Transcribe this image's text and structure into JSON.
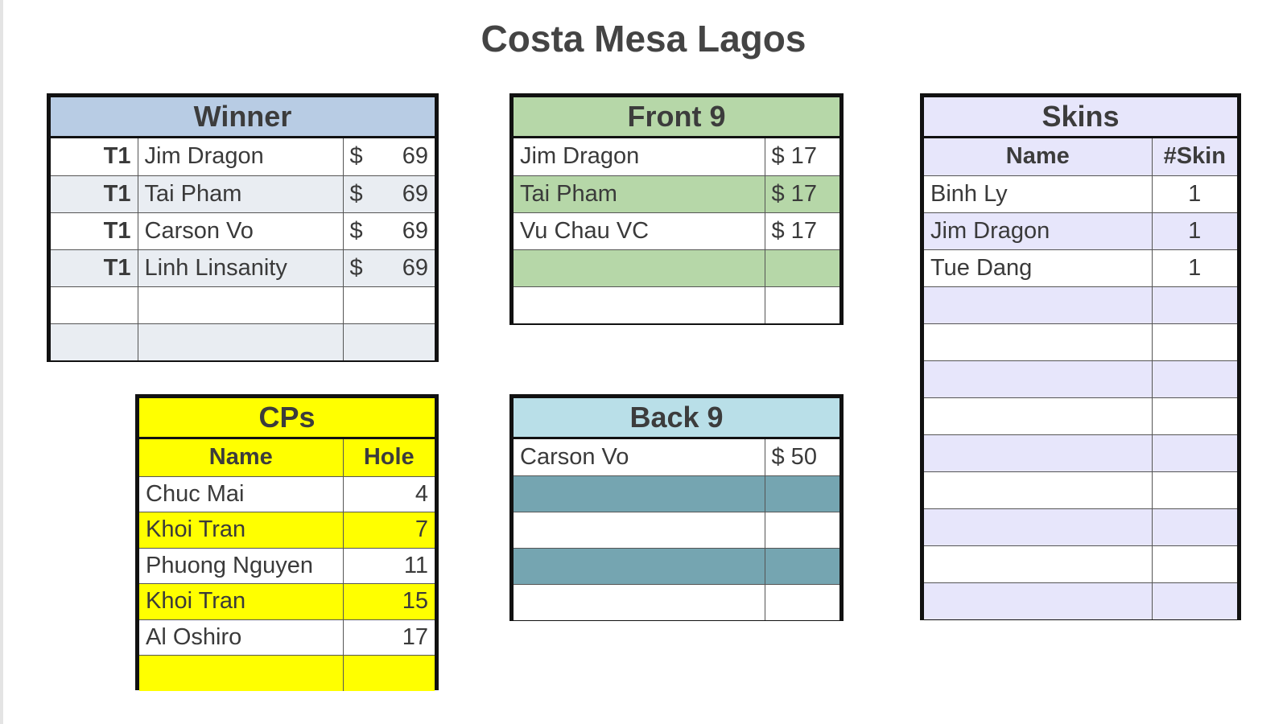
{
  "title": "Costa Mesa Lagos",
  "winner": {
    "header": "Winner",
    "rows": [
      {
        "place": "T1",
        "name": "Jim Dragon",
        "currency": "$",
        "amount": "69"
      },
      {
        "place": "T1",
        "name": "Tai Pham",
        "currency": "$",
        "amount": "69"
      },
      {
        "place": "T1",
        "name": "Carson Vo",
        "currency": "$",
        "amount": "69"
      },
      {
        "place": "T1",
        "name": "Linh Linsanity",
        "currency": "$",
        "amount": "69"
      },
      {
        "place": "",
        "name": "",
        "currency": "",
        "amount": ""
      },
      {
        "place": "",
        "name": "",
        "currency": "",
        "amount": ""
      }
    ]
  },
  "front9": {
    "header": "Front 9",
    "rows": [
      {
        "name": "Jim Dragon",
        "amount": "$ 17"
      },
      {
        "name": "Tai Pham",
        "amount": "$ 17"
      },
      {
        "name": "Vu Chau VC",
        "amount": "$ 17"
      },
      {
        "name": "",
        "amount": ""
      },
      {
        "name": "",
        "amount": ""
      }
    ]
  },
  "back9": {
    "header": "Back 9",
    "rows": [
      {
        "name": "Carson Vo",
        "amount": "$ 50"
      },
      {
        "name": "",
        "amount": ""
      },
      {
        "name": "",
        "amount": ""
      },
      {
        "name": "",
        "amount": ""
      },
      {
        "name": "",
        "amount": ""
      }
    ]
  },
  "cps": {
    "header": "CPs",
    "col_name": "Name",
    "col_hole": "Hole",
    "rows": [
      {
        "name": "Chuc Mai",
        "hole": "4"
      },
      {
        "name": "Khoi Tran",
        "hole": "7"
      },
      {
        "name": "Phuong Nguyen",
        "hole": "11"
      },
      {
        "name": "Khoi Tran",
        "hole": "15"
      },
      {
        "name": "Al Oshiro",
        "hole": "17"
      },
      {
        "name": "",
        "hole": ""
      }
    ]
  },
  "skins": {
    "header": "Skins",
    "col_name": "Name",
    "col_count": "#Skin",
    "rows": [
      {
        "name": "Binh Ly",
        "count": "1"
      },
      {
        "name": "Jim Dragon",
        "count": "1"
      },
      {
        "name": "Tue Dang",
        "count": "1"
      },
      {
        "name": "",
        "count": ""
      },
      {
        "name": "",
        "count": ""
      },
      {
        "name": "",
        "count": ""
      },
      {
        "name": "",
        "count": ""
      },
      {
        "name": "",
        "count": ""
      },
      {
        "name": "",
        "count": ""
      },
      {
        "name": "",
        "count": ""
      },
      {
        "name": "",
        "count": ""
      },
      {
        "name": "",
        "count": ""
      }
    ]
  },
  "colors": {
    "winner_header": "#b8cce4",
    "winner_stripe": "#e9edf2",
    "front9_header": "#b6d7a8",
    "front9_stripe": "#b6d7a8",
    "back9_header": "#b9dfe8",
    "back9_stripe": "#75a5b1",
    "cps_fill": "#ffff00",
    "skins_header": "#e7e6fb",
    "skins_stripe": "#e7e6fb"
  }
}
